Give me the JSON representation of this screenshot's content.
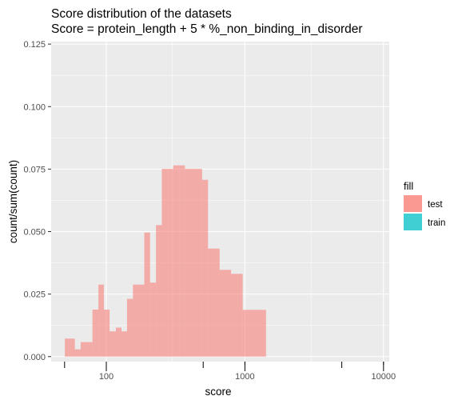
{
  "chart_data": {
    "type": "histogram",
    "title": [
      "Score distribution of the datasets",
      "Score = protein_length + 5 * %_non_binding_in_disorder"
    ],
    "xlabel": "score",
    "ylabel": "count/sum(count)",
    "x_scale": "log10",
    "x_ticks": [
      100,
      1000,
      10000
    ],
    "x_tick_labels": [
      "100",
      "1000",
      "10000"
    ],
    "xlim": [
      40,
      11000
    ],
    "y_ticks": [
      0,
      0.025,
      0.05,
      0.075,
      0.1,
      0.125
    ],
    "y_tick_labels": [
      "0.000",
      "0.025",
      "0.050",
      "0.075",
      "0.100",
      "0.125"
    ],
    "ylim": [
      -0.002,
      0.126
    ],
    "grid": true,
    "legend": {
      "title": "fill",
      "position": "right"
    },
    "bin_edges": [
      47.4,
      50.2,
      59.3,
      65.3,
      71.6,
      79.4,
      87.7,
      96.0,
      105.6,
      117.2,
      128.7,
      141.1,
      155.6,
      170.2,
      187.9,
      206.9,
      228.1,
      251.4,
      276.4,
      304.2,
      335.7,
      369.1,
      406.1,
      447.7,
      491.2,
      541.7,
      595.9,
      656.6,
      722.4,
      794.6,
      876.9,
      963.5,
      1061.4,
      1168.7,
      1286.6,
      1420.1,
      1557.6,
      1718.6,
      1891.2,
      2077.6,
      2299.7,
      2526.4,
      2797.5,
      3065.7,
      3390.7,
      3725.6,
      4116.2,
      4534.1,
      4984.1,
      5480.3,
      6037.1,
      6670.9,
      7342.0,
      8094.0,
      8932.1
    ],
    "series": [
      {
        "name": "test",
        "color": "#F8766D",
        "values": [
          0.0,
          0.0072,
          0.0029,
          0.0058,
          0.0058,
          0.0188,
          0.0288,
          0.0188,
          0.0101,
          0.0116,
          0.0101,
          0.0231,
          0.0288,
          0.0288,
          0.0496,
          0.0296,
          0.0526,
          0.0751,
          0.0751,
          0.0765,
          0.0765,
          0.0751,
          0.0751,
          0.0751,
          0.0707,
          0.0432,
          0.0432,
          0.0347,
          0.0347,
          0.0331,
          0.0331,
          0.0187,
          0.0187,
          0.0187,
          0.0187,
          0.0,
          0.0,
          0.0,
          0.0,
          0.0,
          0.0,
          0.0,
          0.0,
          0.0,
          0.0,
          0.0,
          0.0,
          0.0,
          0.0,
          0.0,
          0.0,
          0.0,
          0.0,
          0.0
        ]
      },
      {
        "name": "train",
        "color": "#00BFC4",
        "values": [
          0.0,
          0.0,
          0.0,
          0.0,
          0.0,
          0.0,
          0.0,
          0.0,
          0.0,
          0.0,
          0.0,
          0.0,
          0.0,
          0.0,
          0.0,
          0.0,
          0.0,
          0.0,
          0.0,
          0.0,
          0.0,
          0.0,
          0.0,
          0.0,
          0.0,
          0.0,
          0.0,
          0.0,
          0.0,
          0.0,
          0.0,
          0.0,
          0.0,
          0.0,
          0.0,
          0.0,
          0.0,
          0.0,
          0.0,
          0.0,
          0.0,
          0.0,
          0.0,
          0.0,
          0.0,
          0.0,
          0.0,
          0.0,
          0.0,
          0.0,
          0.0,
          0.0,
          0.0,
          0.0
        ]
      }
    ]
  }
}
